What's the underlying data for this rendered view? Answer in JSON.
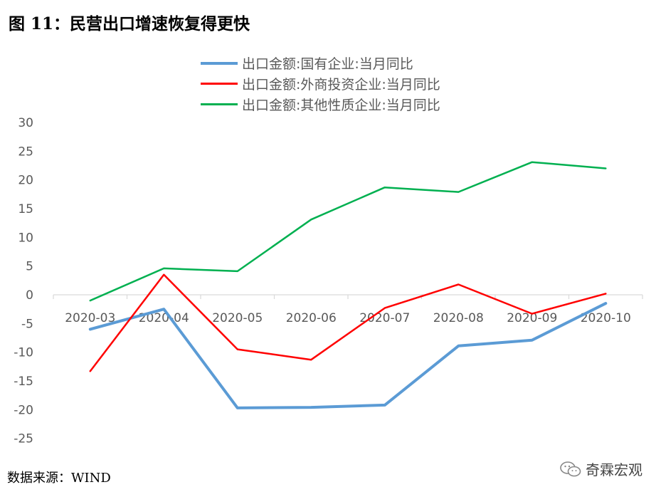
{
  "title": "图 11：民营出口增速恢复得更快",
  "source": "数据来源：WIND",
  "watermark": "奇霖宏观",
  "chart_data": {
    "type": "line",
    "categories": [
      "2020-03",
      "2020-04",
      "2020-05",
      "2020-06",
      "2020-07",
      "2020-08",
      "2020-09",
      "2020-10"
    ],
    "ylim": [
      -25,
      30
    ],
    "yticks": [
      30,
      25,
      20,
      15,
      10,
      5,
      0,
      -5,
      -10,
      -15,
      -20,
      -25
    ],
    "grid": false,
    "legend_position": "top",
    "series": [
      {
        "name": "出口金额:国有企业:当月同比",
        "color": "#5b9bd5",
        "width": 4,
        "values": [
          -6.0,
          -2.5,
          -19.7,
          -19.6,
          -19.2,
          -8.9,
          -7.9,
          -1.5
        ]
      },
      {
        "name": "出口金额:外商投资企业:当月同比",
        "color": "#ff0000",
        "width": 2.5,
        "values": [
          -13.3,
          3.5,
          -9.5,
          -11.3,
          -2.3,
          1.8,
          -3.3,
          0.2
        ]
      },
      {
        "name": "出口金额:其他性质企业:当月同比",
        "color": "#00b050",
        "width": 2.5,
        "values": [
          -1.0,
          4.6,
          4.1,
          13.1,
          18.7,
          17.9,
          23.1,
          22.0
        ]
      }
    ]
  }
}
